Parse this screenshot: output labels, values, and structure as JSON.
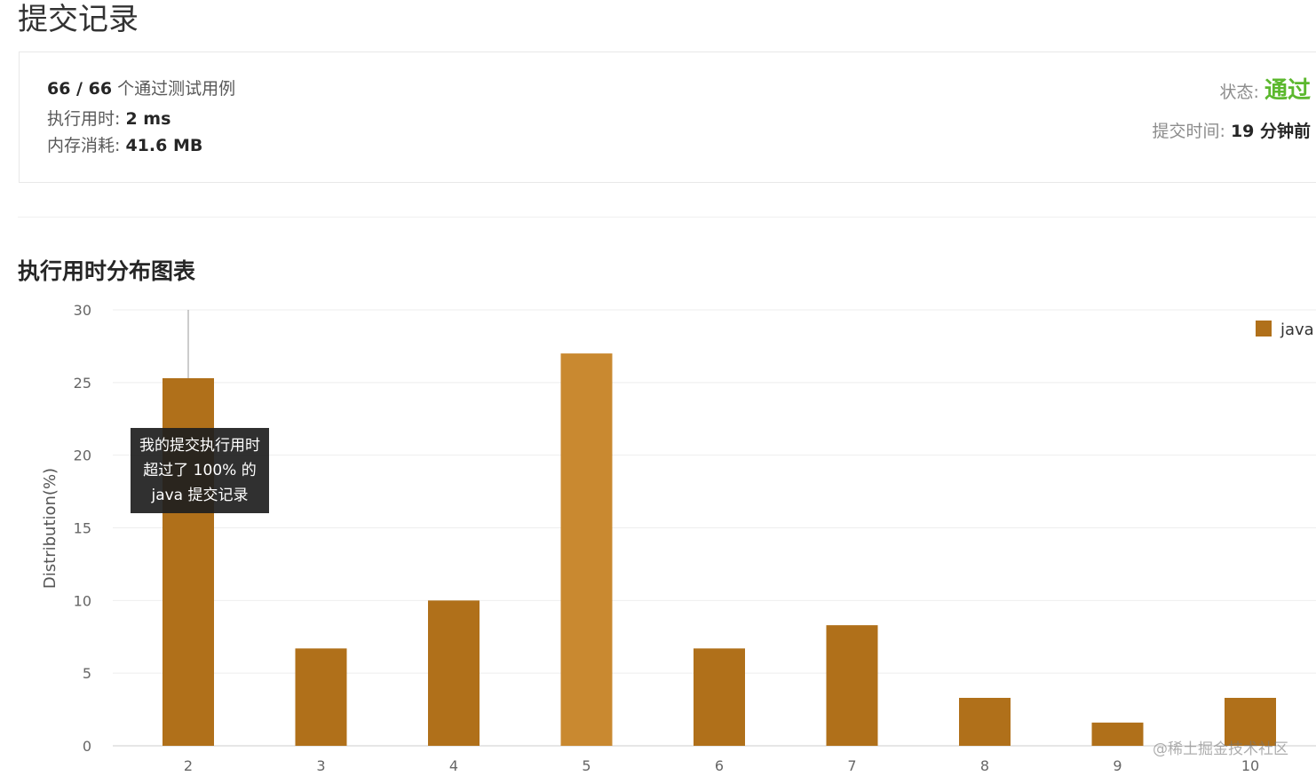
{
  "page_title": "提交记录",
  "summary": {
    "cases": "66 / 66",
    "cases_suffix": "个通过测试用例",
    "runtime_label": "执行用时:",
    "runtime": "2 ms",
    "memory_label": "内存消耗:",
    "memory": "41.6 MB",
    "status_label": "状态:",
    "status": "通过",
    "status_color": "#5cb82e",
    "time_label": "提交时间:",
    "time": "19 分钟前"
  },
  "section_title": "执行用时分布图表",
  "tooltip": {
    "line1": "我的提交执行用时",
    "line2": "超过了 100% 的",
    "line3": "java 提交记录"
  },
  "watermark": "@稀土掘金技术社区",
  "chart_data": {
    "type": "bar",
    "title": "",
    "xlabel": "",
    "ylabel": "Distribution(%)",
    "categories": [
      "2",
      "3",
      "4",
      "5",
      "6",
      "7",
      "8",
      "9",
      "10"
    ],
    "series": [
      {
        "name": "java",
        "values": [
          25.3,
          6.7,
          10.0,
          27.0,
          6.7,
          8.3,
          3.3,
          1.6,
          3.3
        ],
        "color": "#b0701a"
      }
    ],
    "highlight_category": "5",
    "highlight_color": "#c98930",
    "ylim": [
      0,
      30
    ],
    "yticks": [
      0,
      5,
      10,
      15,
      20,
      25,
      30
    ],
    "grid": true,
    "legend": "top-right"
  }
}
